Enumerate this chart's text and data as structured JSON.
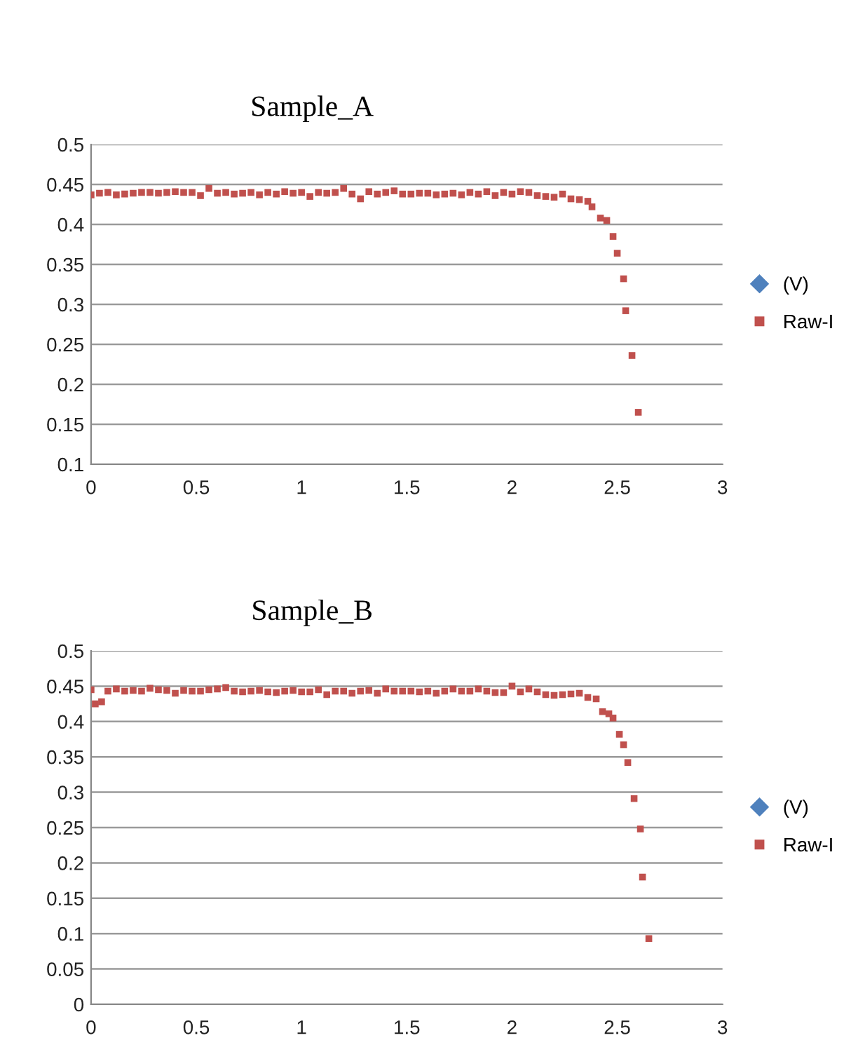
{
  "chart_data": [
    {
      "type": "scatter",
      "title": "Sample_A",
      "xlim": [
        0,
        3
      ],
      "ylim": [
        0.1,
        0.5
      ],
      "xticks": [
        0,
        0.5,
        1,
        1.5,
        2,
        2.5,
        3
      ],
      "yticks": [
        0.1,
        0.15,
        0.2,
        0.25,
        0.3,
        0.35,
        0.4,
        0.45,
        0.5
      ],
      "grid": "y",
      "legend": "right",
      "series": [
        {
          "name": "(V)",
          "color": "#4f81bd",
          "marker": "diamond"
        },
        {
          "name": "Raw-I",
          "color": "#c0504d",
          "marker": "square",
          "x": [
            0.0,
            0.04,
            0.08,
            0.12,
            0.16,
            0.2,
            0.24,
            0.28,
            0.32,
            0.36,
            0.4,
            0.44,
            0.48,
            0.52,
            0.56,
            0.6,
            0.64,
            0.68,
            0.72,
            0.76,
            0.8,
            0.84,
            0.88,
            0.92,
            0.96,
            1.0,
            1.04,
            1.08,
            1.12,
            1.16,
            1.2,
            1.24,
            1.28,
            1.32,
            1.36,
            1.4,
            1.44,
            1.48,
            1.52,
            1.56,
            1.6,
            1.64,
            1.68,
            1.72,
            1.76,
            1.8,
            1.84,
            1.88,
            1.92,
            1.96,
            2.0,
            2.04,
            2.08,
            2.12,
            2.16,
            2.2,
            2.24,
            2.28,
            2.32,
            2.36,
            2.38,
            2.42,
            2.45,
            2.48,
            2.5,
            2.53,
            2.54,
            2.57,
            2.6
          ],
          "values": [
            0.437,
            0.439,
            0.44,
            0.437,
            0.438,
            0.439,
            0.44,
            0.44,
            0.439,
            0.44,
            0.441,
            0.44,
            0.44,
            0.436,
            0.445,
            0.439,
            0.44,
            0.438,
            0.439,
            0.44,
            0.437,
            0.44,
            0.438,
            0.441,
            0.439,
            0.44,
            0.435,
            0.44,
            0.439,
            0.44,
            0.445,
            0.438,
            0.432,
            0.441,
            0.438,
            0.44,
            0.442,
            0.438,
            0.438,
            0.439,
            0.439,
            0.437,
            0.438,
            0.439,
            0.437,
            0.44,
            0.438,
            0.441,
            0.436,
            0.44,
            0.438,
            0.441,
            0.44,
            0.436,
            0.435,
            0.434,
            0.438,
            0.432,
            0.431,
            0.429,
            0.422,
            0.408,
            0.405,
            0.385,
            0.364,
            0.332,
            0.292,
            0.236,
            0.165
          ]
        }
      ]
    },
    {
      "type": "scatter",
      "title": "Sample_B",
      "xlim": [
        0,
        3
      ],
      "ylim": [
        0,
        0.5
      ],
      "xticks": [
        0,
        0.5,
        1,
        1.5,
        2,
        2.5,
        3
      ],
      "yticks": [
        0,
        0.05,
        0.1,
        0.15,
        0.2,
        0.25,
        0.3,
        0.35,
        0.4,
        0.45,
        0.5
      ],
      "grid": "y",
      "legend": "right",
      "series": [
        {
          "name": "(V)",
          "color": "#4f81bd",
          "marker": "diamond"
        },
        {
          "name": "Raw-I",
          "color": "#c0504d",
          "marker": "square",
          "x": [
            0.0,
            0.02,
            0.05,
            0.08,
            0.12,
            0.16,
            0.2,
            0.24,
            0.28,
            0.32,
            0.36,
            0.4,
            0.44,
            0.48,
            0.52,
            0.56,
            0.6,
            0.64,
            0.68,
            0.72,
            0.76,
            0.8,
            0.84,
            0.88,
            0.92,
            0.96,
            1.0,
            1.04,
            1.08,
            1.12,
            1.16,
            1.2,
            1.24,
            1.28,
            1.32,
            1.36,
            1.4,
            1.44,
            1.48,
            1.52,
            1.56,
            1.6,
            1.64,
            1.68,
            1.72,
            1.76,
            1.8,
            1.84,
            1.88,
            1.92,
            1.96,
            2.0,
            2.04,
            2.08,
            2.12,
            2.16,
            2.2,
            2.24,
            2.28,
            2.32,
            2.36,
            2.4,
            2.43,
            2.46,
            2.48,
            2.51,
            2.53,
            2.55,
            2.58,
            2.61,
            2.62,
            2.65
          ],
          "values": [
            0.445,
            0.425,
            0.428,
            0.443,
            0.446,
            0.443,
            0.444,
            0.443,
            0.447,
            0.445,
            0.444,
            0.44,
            0.444,
            0.443,
            0.443,
            0.445,
            0.446,
            0.448,
            0.443,
            0.442,
            0.443,
            0.444,
            0.442,
            0.441,
            0.443,
            0.444,
            0.442,
            0.442,
            0.445,
            0.438,
            0.443,
            0.443,
            0.44,
            0.443,
            0.444,
            0.44,
            0.446,
            0.443,
            0.443,
            0.443,
            0.442,
            0.443,
            0.44,
            0.443,
            0.446,
            0.443,
            0.443,
            0.446,
            0.443,
            0.441,
            0.441,
            0.45,
            0.442,
            0.446,
            0.442,
            0.438,
            0.437,
            0.438,
            0.439,
            0.44,
            0.434,
            0.432,
            0.414,
            0.411,
            0.405,
            0.382,
            0.367,
            0.342,
            0.291,
            0.248,
            0.18,
            0.093
          ]
        }
      ]
    }
  ]
}
